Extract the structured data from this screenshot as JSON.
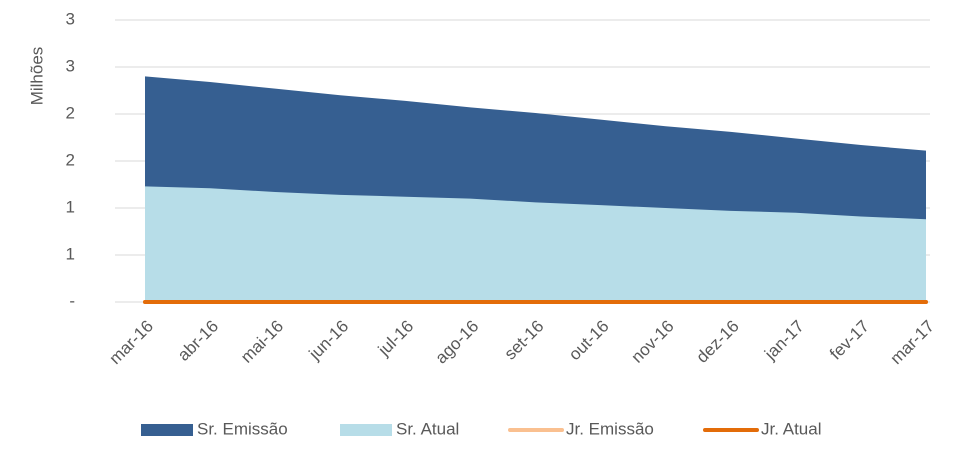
{
  "chart_data": {
    "type": "area",
    "y_axis_label": "Milhões",
    "categories": [
      "mar-16",
      "abr-16",
      "mai-16",
      "jun-16",
      "jul-16",
      "ago-16",
      "set-16",
      "out-16",
      "nov-16",
      "dez-16",
      "jan-17",
      "fev-17",
      "mar-17"
    ],
    "series": [
      {
        "name": "Sr. Emissão",
        "type": "area",
        "color": "#365f91",
        "values": [
          2.4,
          2.34,
          2.27,
          2.2,
          2.14,
          2.07,
          2.01,
          1.94,
          1.87,
          1.81,
          1.74,
          1.67,
          1.61
        ]
      },
      {
        "name": "Sr. Atual",
        "type": "area",
        "color": "#b7dde8",
        "values": [
          1.23,
          1.21,
          1.17,
          1.14,
          1.12,
          1.1,
          1.06,
          1.03,
          1.0,
          0.97,
          0.95,
          0.91,
          0.88
        ]
      },
      {
        "name": "Jr. Emissão",
        "type": "line",
        "color": "#fac090",
        "values": [
          0,
          0,
          0,
          0,
          0,
          0,
          0,
          0,
          0,
          0,
          0,
          0,
          0
        ]
      },
      {
        "name": "Jr. Atual",
        "type": "line",
        "color": "#e36c09",
        "values": [
          0,
          0,
          0,
          0,
          0,
          0,
          0,
          0,
          0,
          0,
          0,
          0,
          0
        ]
      }
    ],
    "ylim": [
      0,
      3
    ],
    "yticks": [
      {
        "value": 0,
        "label": "-"
      },
      {
        "value": 0.5,
        "label": "1"
      },
      1,
      {
        "value": 1.5,
        "label": "2"
      },
      2,
      {
        "value": 2.5,
        "label": "3"
      },
      3
    ],
    "grid": true,
    "legend": "bottom"
  }
}
